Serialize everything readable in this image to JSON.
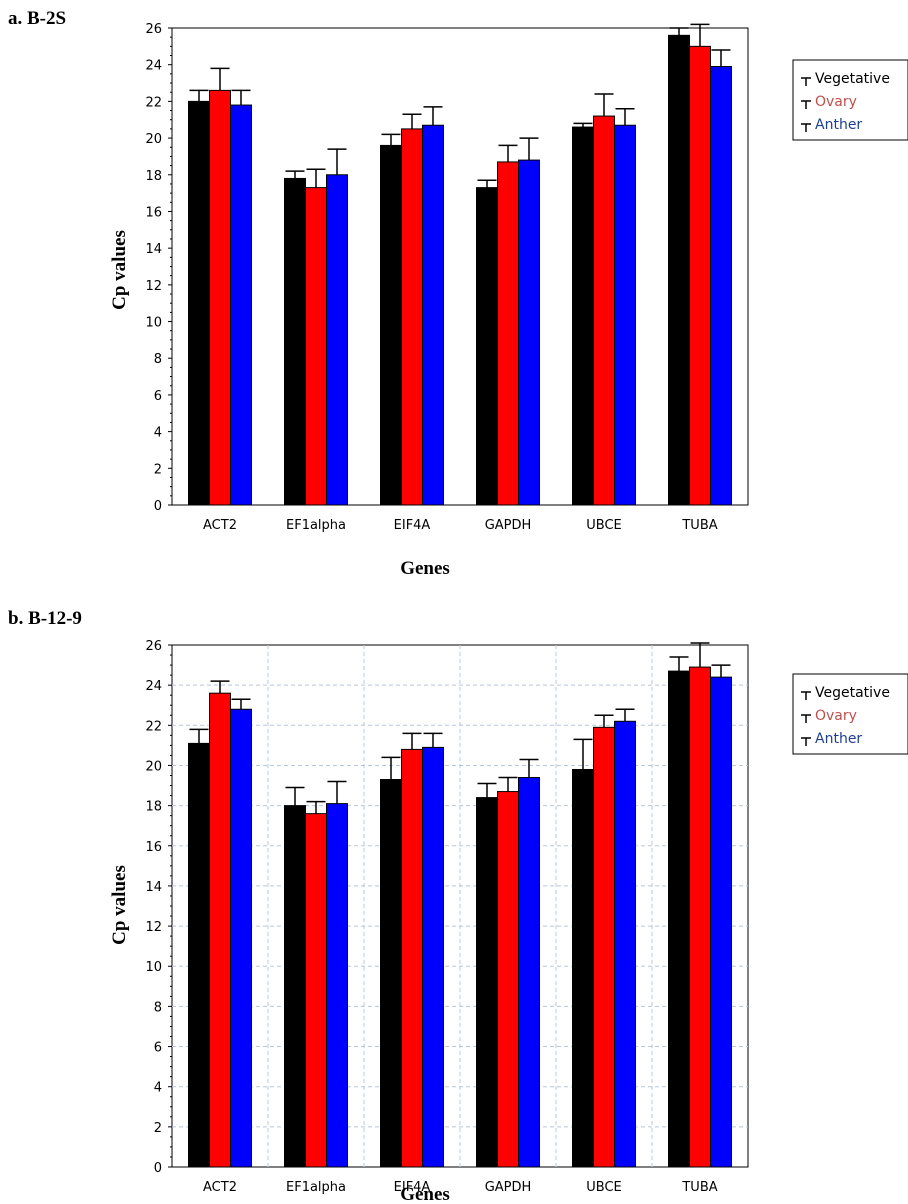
{
  "panels": [
    {
      "label": "a.  B-2S",
      "xlabel": "Genes",
      "ylabel": "Cp values",
      "legend": [
        "Vegetative",
        "Ovary",
        "Anther"
      ]
    },
    {
      "label": "b.  B-12-9",
      "xlabel": "Genes",
      "ylabel": "Cp values",
      "legend": [
        "Vegetative",
        "Ovary",
        "Anther"
      ]
    }
  ],
  "chart_data": [
    {
      "type": "bar",
      "categories": [
        "ACT2",
        "EF1alpha",
        "EIF4A",
        "GAPDH",
        "UBCE",
        "TUBA"
      ],
      "series": [
        {
          "name": "Vegetative",
          "color": "#000000",
          "values": [
            22.0,
            17.8,
            19.6,
            17.3,
            20.6,
            25.6
          ],
          "errors": [
            0.6,
            0.4,
            0.6,
            0.4,
            0.2,
            0.4
          ]
        },
        {
          "name": "Ovary",
          "color": "#ff0000",
          "values": [
            22.6,
            17.3,
            20.5,
            18.7,
            21.2,
            25.0
          ],
          "errors": [
            1.2,
            1.0,
            0.8,
            0.9,
            1.2,
            1.2
          ]
        },
        {
          "name": "Anther",
          "color": "#0000ff",
          "values": [
            21.8,
            18.0,
            20.7,
            18.8,
            20.7,
            23.9
          ],
          "errors": [
            0.8,
            1.4,
            1.0,
            1.2,
            0.9,
            0.9
          ]
        }
      ],
      "xlabel": "Genes",
      "ylabel": "Cp values",
      "ylim": [
        0,
        26
      ],
      "yticks": [
        0,
        2,
        4,
        6,
        8,
        10,
        12,
        14,
        16,
        18,
        20,
        22,
        24,
        26
      ],
      "grid": false,
      "legend_position": "right-top"
    },
    {
      "type": "bar",
      "categories": [
        "ACT2",
        "EF1alpha",
        "EIF4A",
        "GAPDH",
        "UBCE",
        "TUBA"
      ],
      "series": [
        {
          "name": "Vegetative",
          "color": "#000000",
          "values": [
            21.1,
            18.0,
            19.3,
            18.4,
            19.8,
            24.7
          ],
          "errors": [
            0.7,
            0.9,
            1.1,
            0.7,
            1.5,
            0.7
          ]
        },
        {
          "name": "Ovary",
          "color": "#ff0000",
          "values": [
            23.6,
            17.6,
            20.8,
            18.7,
            21.9,
            24.9
          ],
          "errors": [
            0.6,
            0.6,
            0.8,
            0.7,
            0.6,
            1.2
          ]
        },
        {
          "name": "Anther",
          "color": "#0000ff",
          "values": [
            22.8,
            18.1,
            20.9,
            19.4,
            22.2,
            24.4
          ],
          "errors": [
            0.5,
            1.1,
            0.7,
            0.9,
            0.6,
            0.6
          ]
        }
      ],
      "xlabel": "Genes",
      "ylabel": "Cp values",
      "ylim": [
        0,
        26
      ],
      "yticks": [
        0,
        2,
        4,
        6,
        8,
        10,
        12,
        14,
        16,
        18,
        20,
        22,
        24,
        26
      ],
      "grid": true,
      "legend_position": "right-top"
    }
  ]
}
